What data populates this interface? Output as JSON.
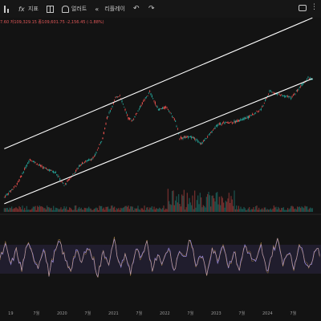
{
  "toolbar": {
    "items": [
      {
        "icon": "bar-chart-icon",
        "label": ""
      },
      {
        "icon": "function-icon",
        "label": "지표"
      },
      {
        "icon": "layout-grid-icon",
        "label": ""
      },
      {
        "icon": "alert-bell-icon",
        "label": "얼러트"
      },
      {
        "icon": "replay-icon",
        "label": "리플레이"
      },
      {
        "icon": "undo-icon",
        "label": "↶"
      },
      {
        "icon": "redo-icon",
        "label": "↷"
      }
    ],
    "right_icons": [
      "camera-icon",
      "more-icon"
    ]
  },
  "ohlc_text": "7.60 저109,329.15 종109,601.75 -2,156.45 (-1.88%)",
  "colors": {
    "background": "#131313",
    "candle_up": "#26a69a",
    "candle_down": "#ef5350",
    "trend_line": "#ffffff",
    "rsi_line": "#9a8ad8",
    "rsi_band": "#2a2440"
  },
  "chart_data": [
    {
      "type": "line",
      "panel": "price",
      "scale": "log",
      "x_tick_labels": [
        "19",
        "7월",
        "2020",
        "7월",
        "2021",
        "7월",
        "2022",
        "7월",
        "2023",
        "7월",
        "2024",
        "7월"
      ],
      "x": [
        "2019-01",
        "2019-04",
        "2019-07",
        "2019-10",
        "2020-01",
        "2020-03",
        "2020-07",
        "2020-10",
        "2020-12",
        "2021-01",
        "2021-03",
        "2021-04",
        "2021-06",
        "2021-07",
        "2021-09",
        "2021-11",
        "2022-01",
        "2022-03",
        "2022-05",
        "2022-06",
        "2022-09",
        "2022-11",
        "2023-01",
        "2023-03",
        "2023-07",
        "2023-10",
        "2024-01",
        "2024-03",
        "2024-05",
        "2024-08",
        "2024-11",
        "2024-12",
        "2025-01"
      ],
      "series": [
        {
          "values": [
            3600,
            5200,
            10500,
            8300,
            7200,
            5000,
            9200,
            11000,
            19000,
            33000,
            58000,
            63000,
            33000,
            31000,
            48000,
            69000,
            42000,
            45000,
            30000,
            19000,
            19500,
            16000,
            21000,
            28000,
            30000,
            34000,
            42000,
            70000,
            65000,
            58000,
            90000,
            103000,
            98000
          ]
        }
      ],
      "trend_lines": [
        {
          "label": "upper",
          "from": [
            "2019-01",
            14000
          ],
          "to": [
            "2025-01",
            550000
          ]
        },
        {
          "label": "lower",
          "from": [
            "2019-01",
            3000
          ],
          "to": [
            "2025-01",
            100000
          ]
        }
      ],
      "volume": true
    },
    {
      "type": "line",
      "panel": "oscillator",
      "band": [
        30,
        70
      ],
      "ylim": [
        0,
        100
      ],
      "values": [
        50,
        68,
        42,
        62,
        35,
        72,
        55,
        40,
        66,
        30,
        58,
        74,
        48,
        36,
        62,
        44,
        70,
        52,
        28,
        60,
        46,
        75,
        40,
        55,
        32,
        64,
        50,
        71,
        38,
        58,
        45,
        68,
        34,
        62,
        52,
        78,
        42,
        56,
        30,
        66,
        48,
        73,
        40,
        60,
        36,
        70,
        54,
        44,
        68,
        32,
        58,
        76,
        46,
        62,
        38,
        72,
        50,
        40,
        66,
        54
      ]
    }
  ]
}
